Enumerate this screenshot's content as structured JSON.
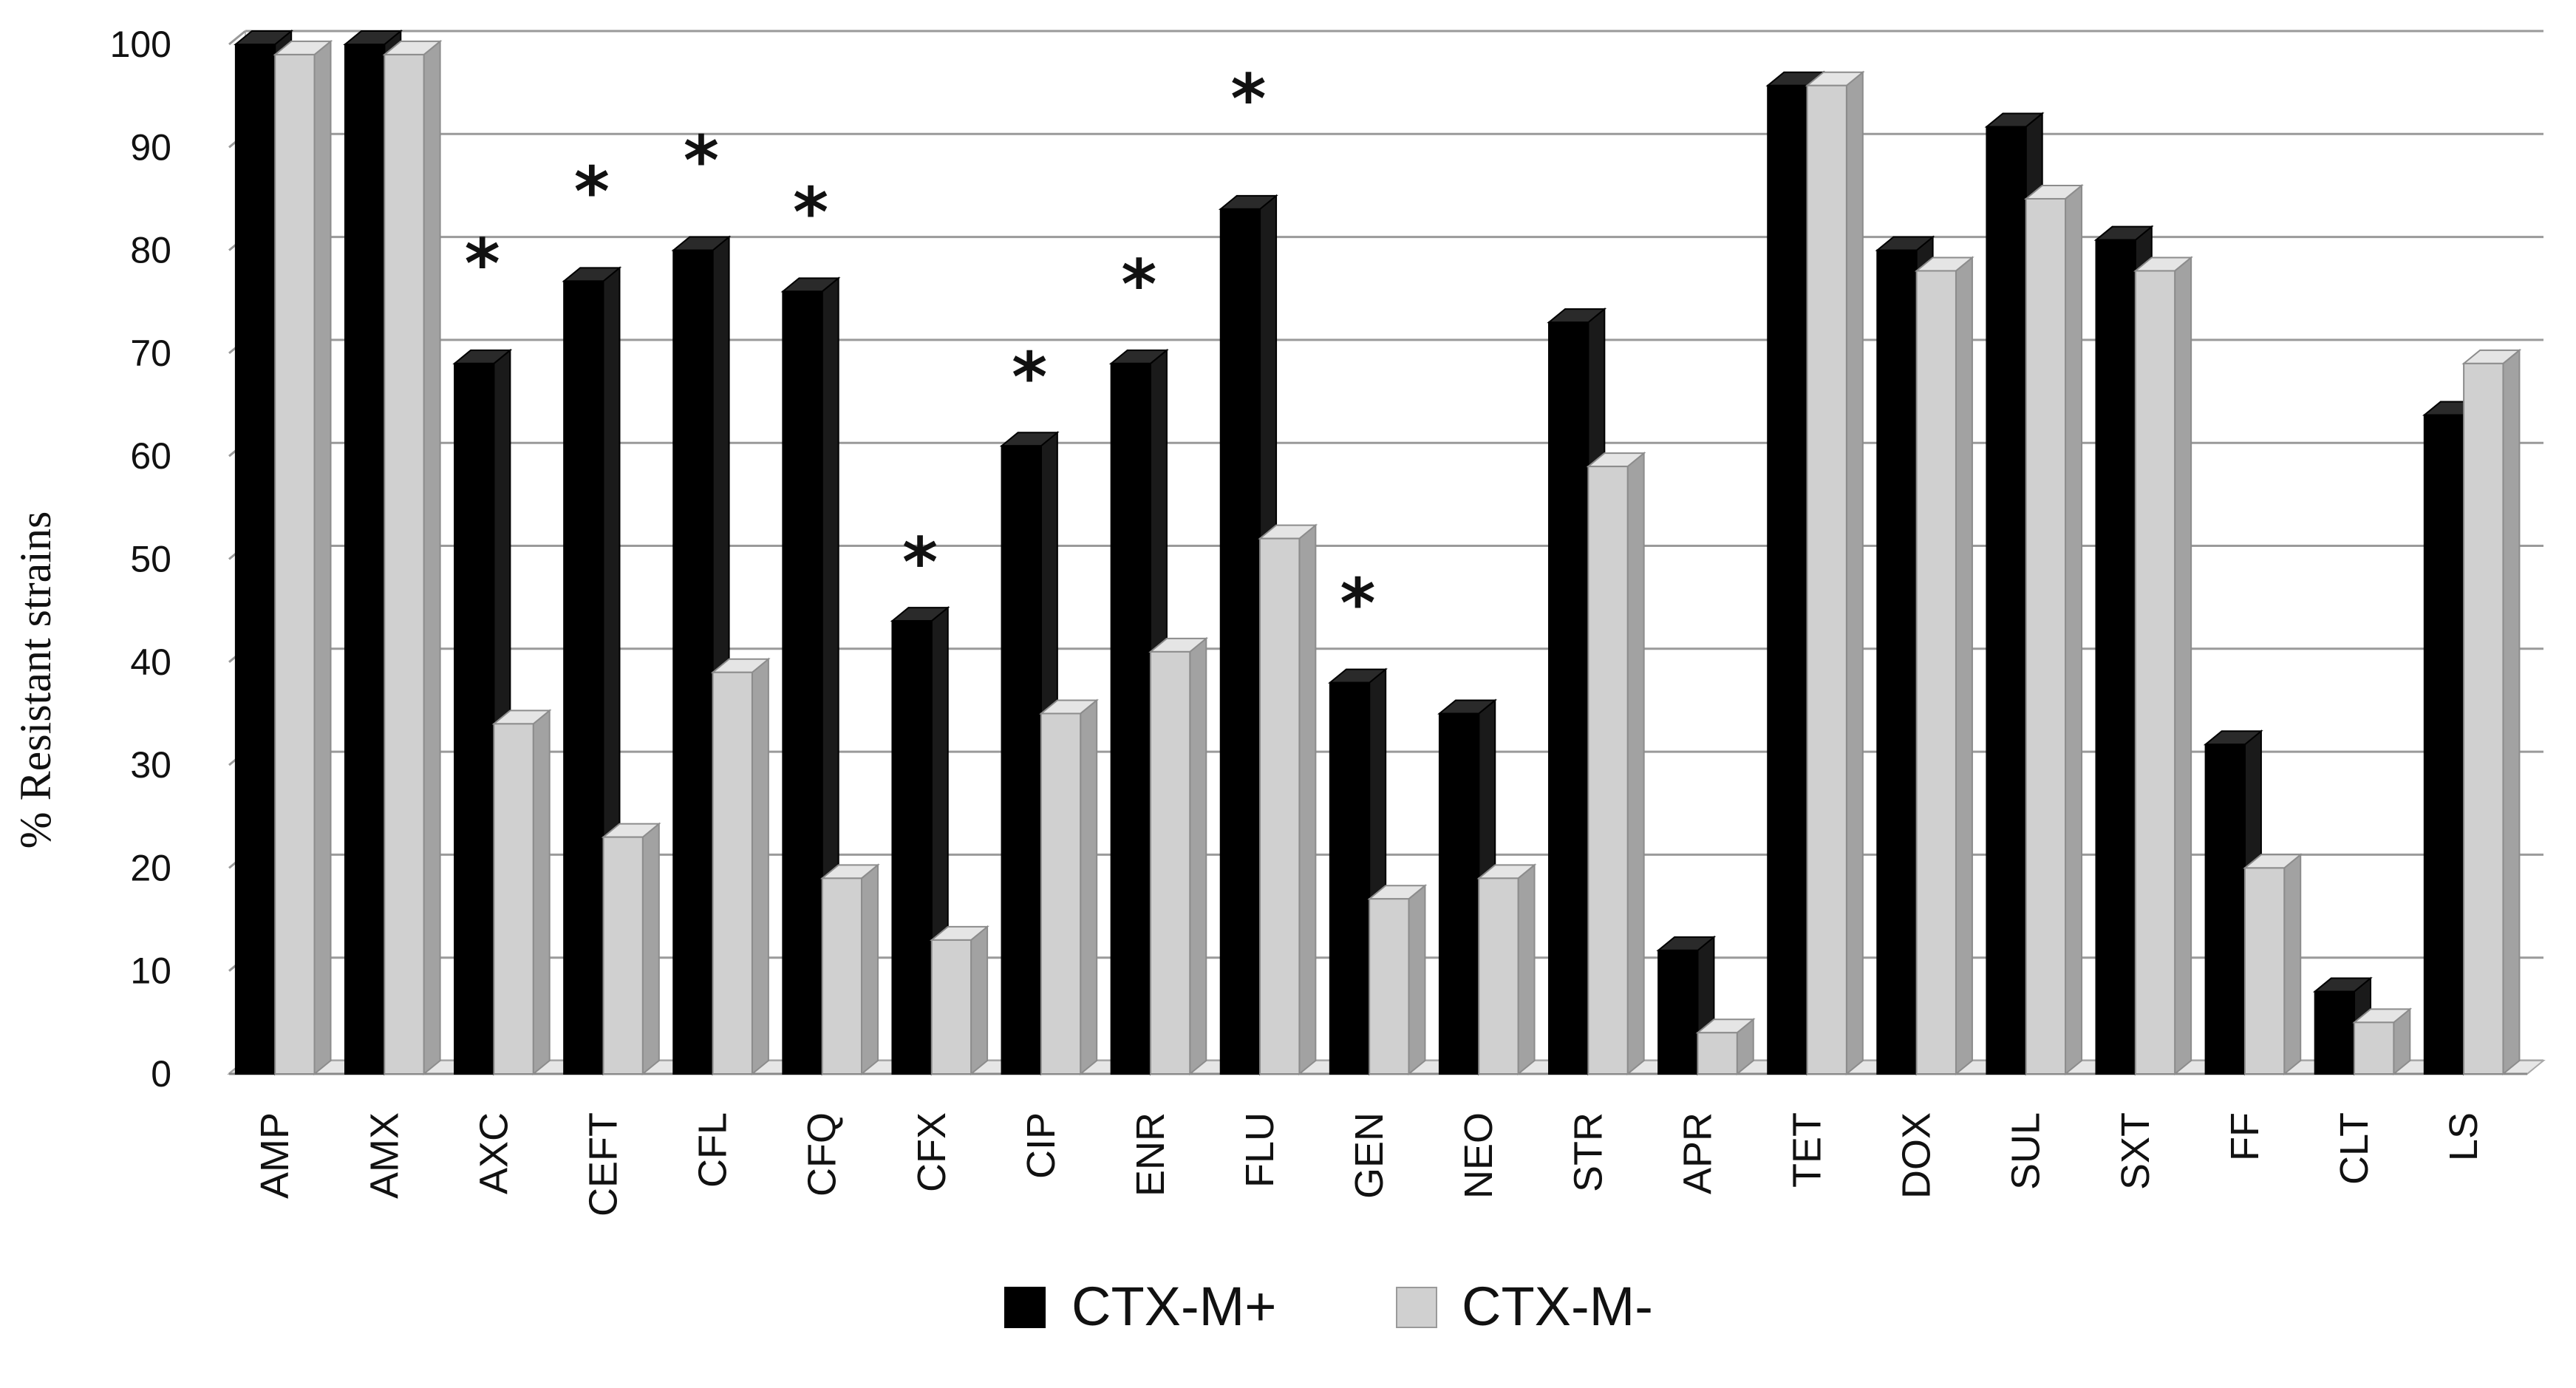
{
  "chart_data": {
    "type": "bar",
    "title": "",
    "xlabel": "",
    "ylabel": "% Resistant strains",
    "ylim": [
      0,
      100
    ],
    "yticks": [
      0,
      10,
      20,
      30,
      40,
      50,
      60,
      70,
      80,
      90,
      100
    ],
    "grid": true,
    "legend_position": "bottom",
    "categories": [
      "AMP",
      "AMX",
      "AXC",
      "CEFT",
      "CFL",
      "CFQ",
      "CFX",
      "CIP",
      "ENR",
      "FLU",
      "GEN",
      "NEO",
      "STR",
      "APR",
      "TET",
      "DOX",
      "SUL",
      "SXT",
      "FF",
      "CLT",
      "LS"
    ],
    "series": [
      {
        "name": "CTX-M+",
        "color": "#000000",
        "values": [
          100,
          100,
          69,
          77,
          80,
          76,
          44,
          61,
          69,
          84,
          38,
          35,
          73,
          12,
          96,
          80,
          92,
          81,
          32,
          8,
          64
        ]
      },
      {
        "name": "CTX-M-",
        "color": "#d0d0d0",
        "values": [
          99,
          99,
          34,
          23,
          39,
          19,
          13,
          35,
          41,
          52,
          17,
          19,
          59,
          4,
          96,
          78,
          85,
          78,
          20,
          5,
          69
        ]
      }
    ],
    "annotations": [
      {
        "category": "AXC",
        "text": "*",
        "y": 79
      },
      {
        "category": "CEFT",
        "text": "*",
        "y": 86
      },
      {
        "category": "CFL",
        "text": "*",
        "y": 89
      },
      {
        "category": "CFQ",
        "text": "*",
        "y": 84
      },
      {
        "category": "CFX",
        "text": "*",
        "y": 50
      },
      {
        "category": "CIP",
        "text": "*",
        "y": 68
      },
      {
        "category": "ENR",
        "text": "*",
        "y": 77
      },
      {
        "category": "FLU",
        "text": "*",
        "y": 95
      },
      {
        "category": "GEN",
        "text": "*",
        "y": 46
      }
    ]
  }
}
